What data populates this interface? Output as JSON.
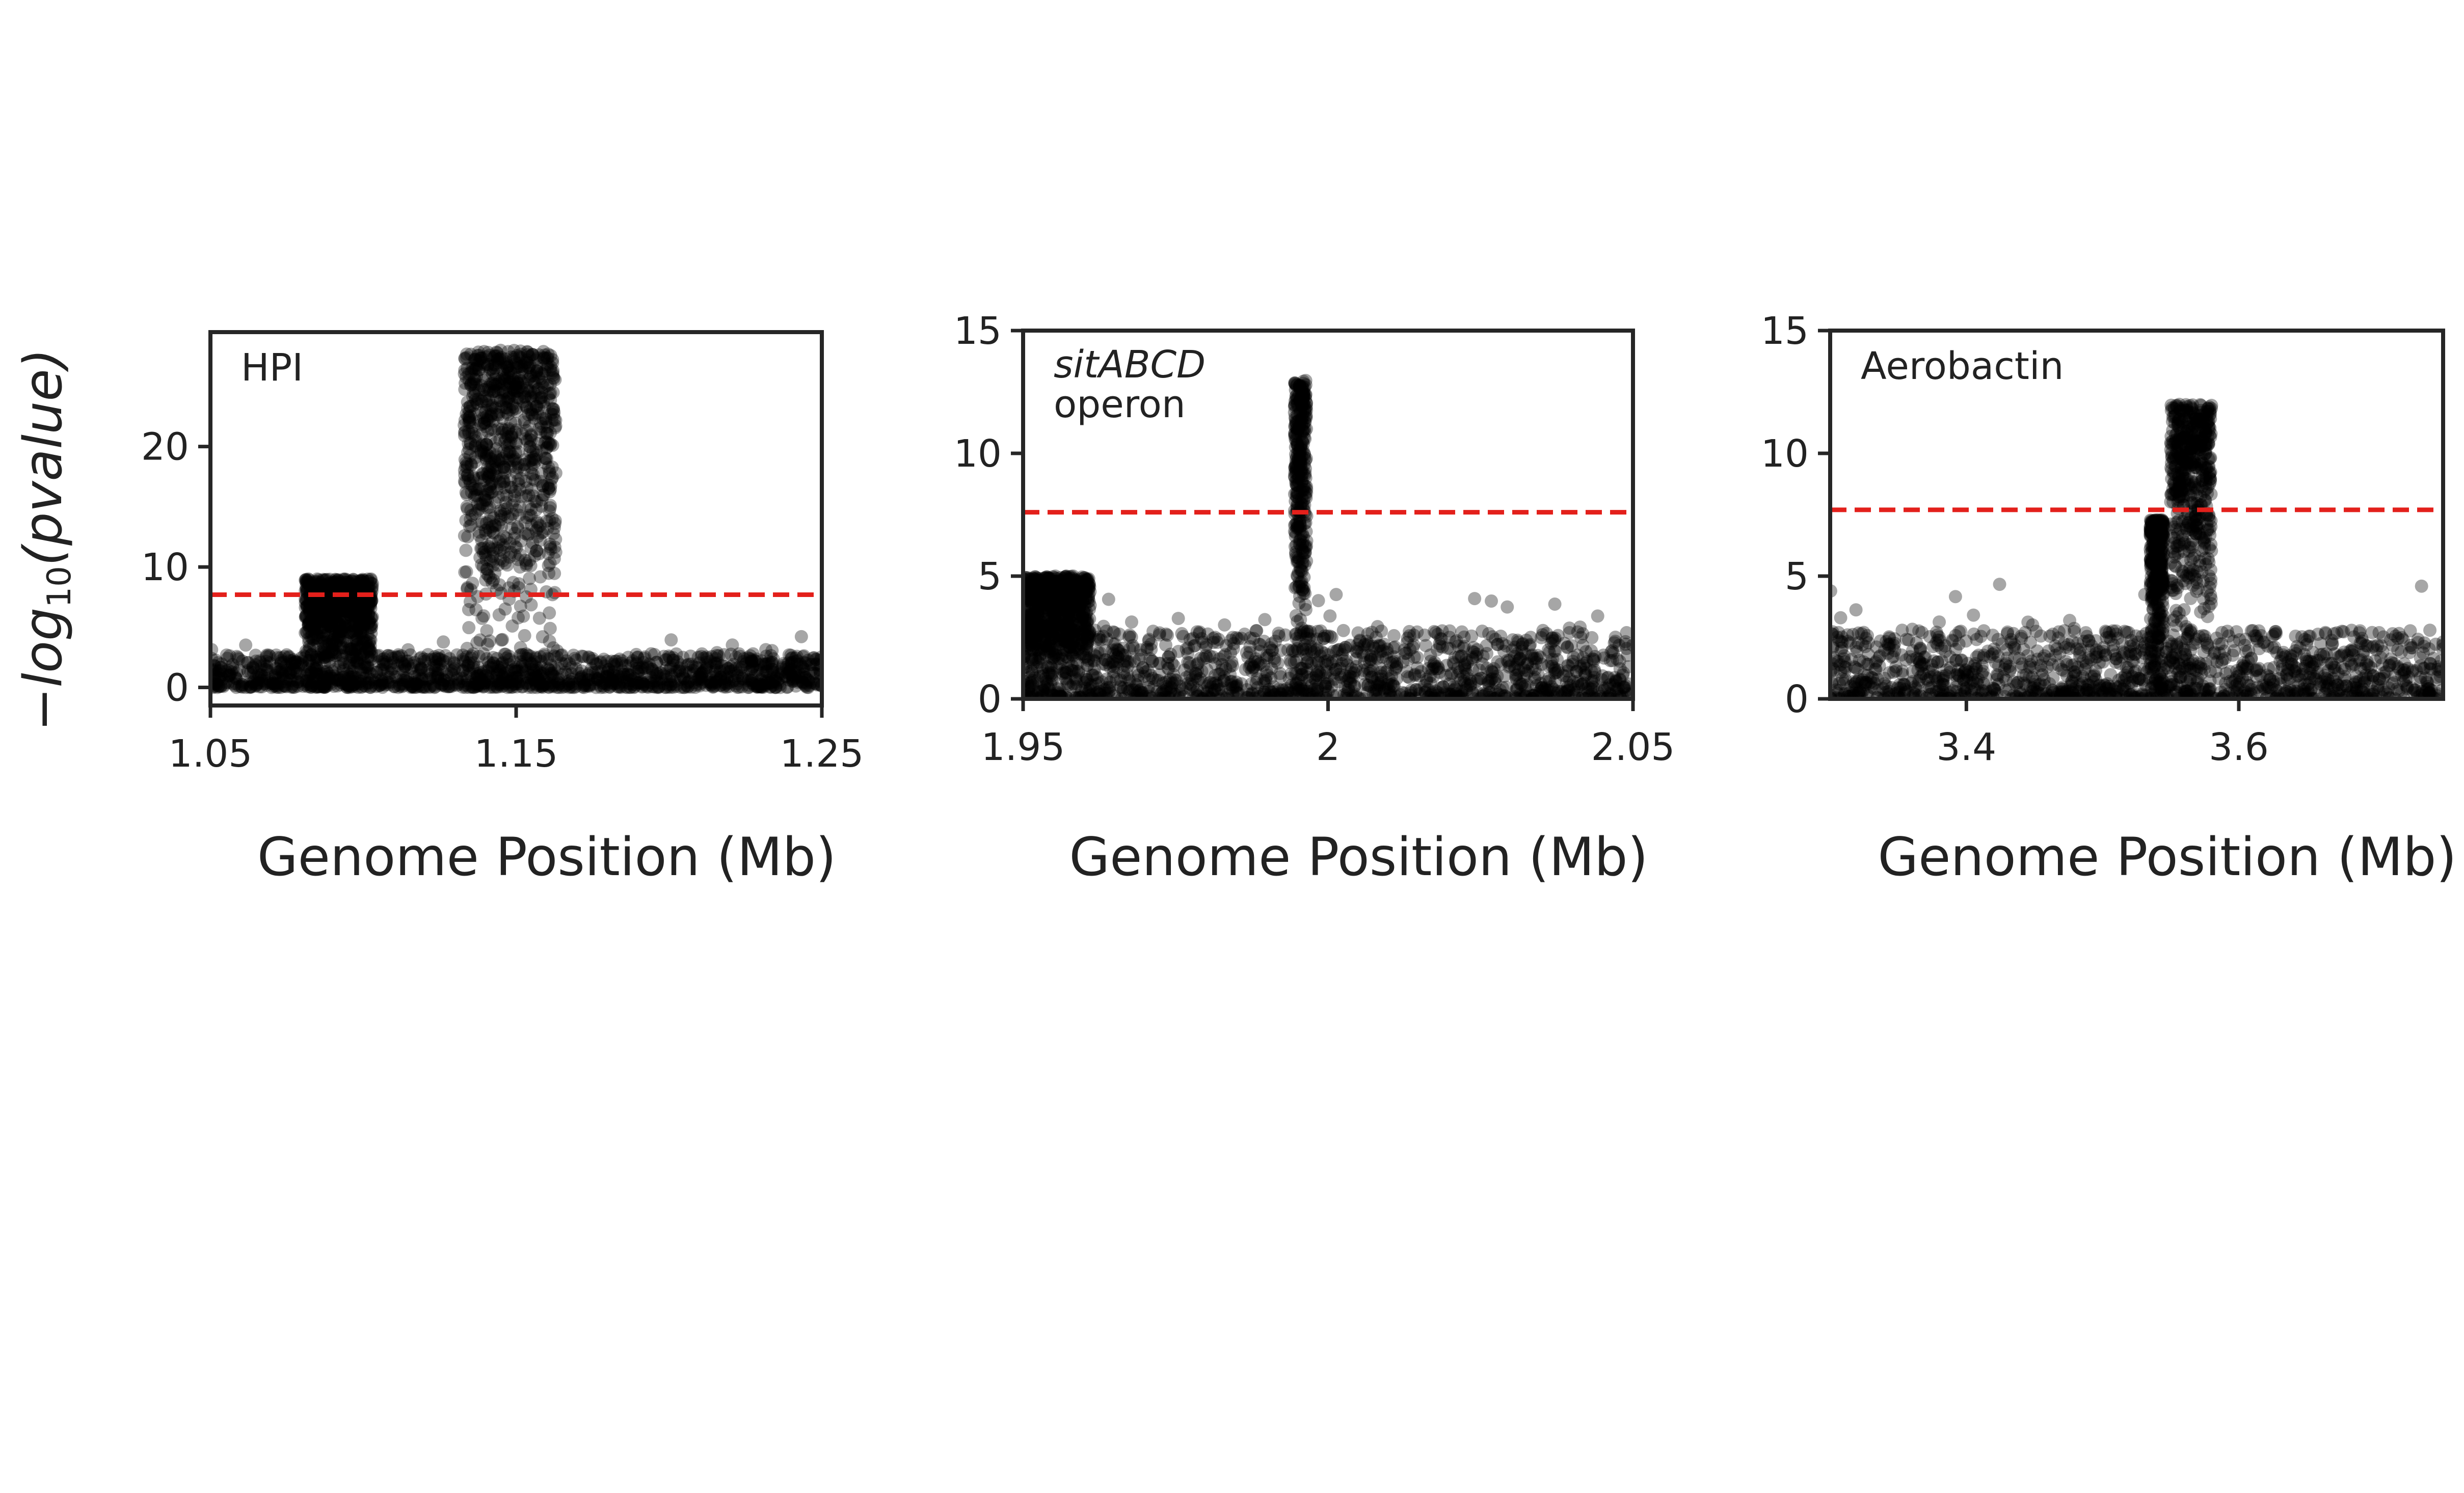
{
  "figure": {
    "ylabel_prefix": "−log",
    "ylabel_sub": "10",
    "ylabel_body": "(pvalue)",
    "threshold_color": "#e3201b",
    "point_color": "#000000"
  },
  "chart_data": [
    {
      "type": "scatter",
      "title": "",
      "annotation": "HPI",
      "annotation_italic": "",
      "xlabel": "Genome Position (Mb)",
      "xlim": [
        1.05,
        1.25
      ],
      "ylim": [
        -1.5,
        29.5
      ],
      "xticks": [
        1.05,
        1.15,
        1.25
      ],
      "xtick_labels": [
        "1.05",
        "1.15",
        "1.25"
      ],
      "yticks": [
        0,
        10,
        20
      ],
      "ytick_labels": [
        "0",
        "10",
        "20"
      ],
      "threshold": 7.7,
      "grid": false,
      "peak_regions": [
        {
          "x_start": 1.133,
          "x_end": 1.163,
          "y_max": 28
        },
        {
          "x_start": 1.081,
          "x_end": 1.103,
          "y_max": 9
        }
      ]
    },
    {
      "type": "scatter",
      "title": "",
      "annotation": "operon",
      "annotation_italic": "sitABCD",
      "xlabel": "Genome Position (Mb)",
      "xlim": [
        1.95,
        2.05
      ],
      "ylim": [
        0,
        15
      ],
      "xticks": [
        1.95,
        2.0,
        2.05
      ],
      "xtick_labels": [
        "1.95",
        "2",
        "2.05"
      ],
      "yticks": [
        0,
        5,
        10,
        15
      ],
      "ytick_labels": [
        "0",
        "5",
        "10",
        "15"
      ],
      "threshold": 7.6,
      "grid": false,
      "peak_regions": [
        {
          "x_start": 1.9945,
          "x_end": 1.9965,
          "y_max": 13
        },
        {
          "x_start": 1.95,
          "x_end": 1.961,
          "y_max": 5
        }
      ]
    },
    {
      "type": "scatter",
      "title": "",
      "annotation": "Aerobactin",
      "annotation_italic": "",
      "xlabel": "Genome Position (Mb)",
      "xlim": [
        3.3,
        3.75
      ],
      "ylim": [
        0,
        15
      ],
      "xticks": [
        3.4,
        3.6
      ],
      "xtick_labels": [
        "3.4",
        "3.6"
      ],
      "yticks": [
        0,
        5,
        10,
        15
      ],
      "ytick_labels": [
        "0",
        "5",
        "10",
        "15"
      ],
      "threshold": 7.7,
      "grid": false,
      "peak_regions": [
        {
          "x_start": 3.55,
          "x_end": 3.58,
          "y_max": 12
        },
        {
          "x_start": 3.535,
          "x_end": 3.545,
          "y_max": 7.3
        }
      ]
    }
  ]
}
